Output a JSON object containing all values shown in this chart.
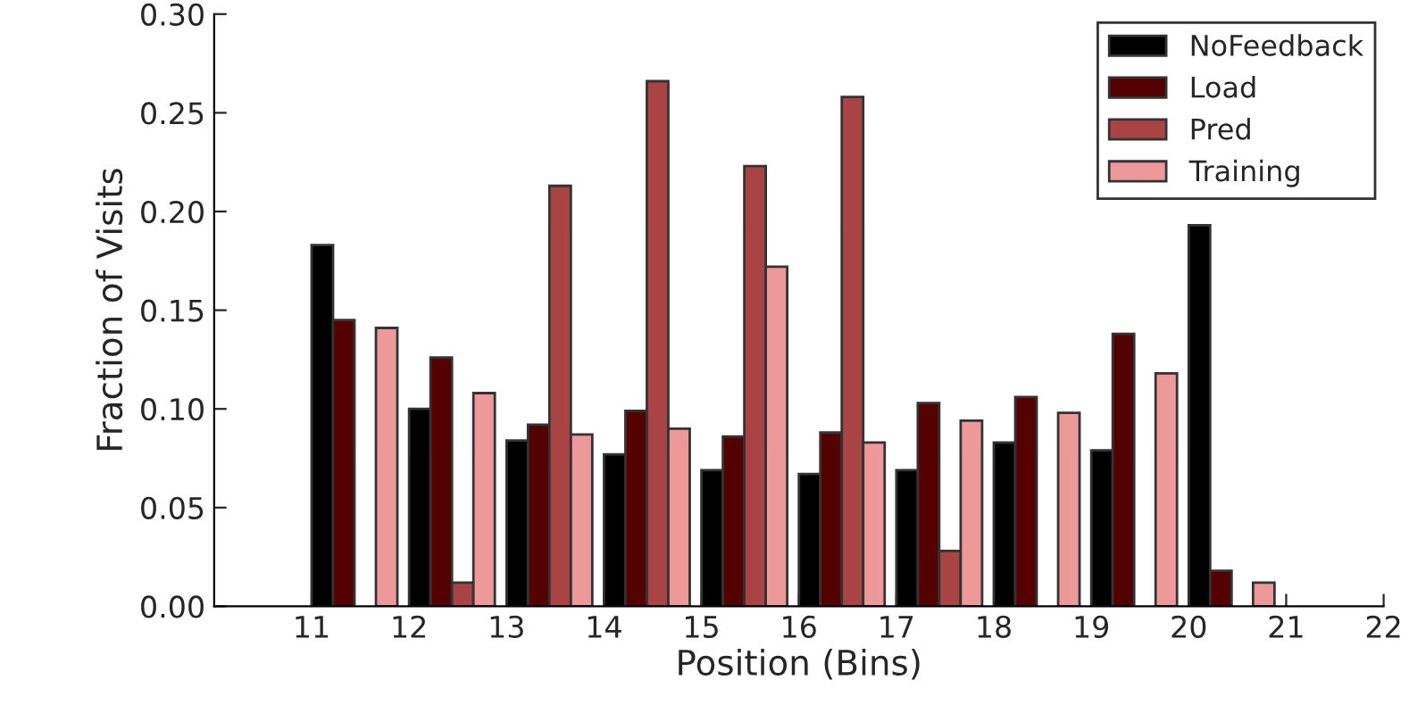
{
  "chart_data": {
    "type": "bar",
    "xlabel": "Position (Bins)",
    "ylabel": "Fraction of Visits",
    "series": [
      {
        "name": "NoFeedback",
        "color": "#000000",
        "x": [
          11.11,
          12.11,
          13.11,
          14.11,
          15.11,
          16.11,
          17.11,
          18.11,
          19.11,
          20.11
        ],
        "values": [
          0.183,
          0.1,
          0.084,
          0.077,
          0.069,
          0.067,
          0.069,
          0.083,
          0.079,
          0.193
        ]
      },
      {
        "name": "Load",
        "color": "#550000",
        "x": [
          11.33,
          12.33,
          13.33,
          14.33,
          15.33,
          16.33,
          17.33,
          18.33,
          19.33,
          20.33
        ],
        "values": [
          0.145,
          0.126,
          0.092,
          0.099,
          0.086,
          0.088,
          0.103,
          0.106,
          0.138,
          0.018
        ]
      },
      {
        "name": "Pred",
        "color": "#aa4444",
        "x": [
          12.55,
          13.55,
          14.55,
          15.55,
          16.55,
          17.55
        ],
        "values": [
          0.012,
          0.213,
          0.266,
          0.223,
          0.258,
          0.028
        ]
      },
      {
        "name": "Training",
        "color": "#ee9999",
        "x": [
          11.77,
          12.77,
          13.77,
          14.77,
          15.77,
          16.77,
          17.77,
          18.77,
          19.77,
          20.77
        ],
        "values": [
          0.141,
          0.108,
          0.087,
          0.09,
          0.172,
          0.083,
          0.094,
          0.098,
          0.118,
          0.012
        ]
      }
    ],
    "xlim": [
      10,
      22
    ],
    "xticks": [
      11,
      12,
      13,
      14,
      15,
      16,
      17,
      18,
      19,
      20,
      21,
      22
    ],
    "ylim": [
      0,
      0.3
    ],
    "yticks": [
      {
        "value": 0,
        "label": "0.00"
      },
      {
        "value": 0.05,
        "label": "0.05"
      },
      {
        "value": 0.1,
        "label": "0.10"
      },
      {
        "value": 0.15,
        "label": "0.15"
      },
      {
        "value": 0.2,
        "label": "0.20"
      },
      {
        "value": 0.25,
        "label": "0.25"
      },
      {
        "value": 0.3,
        "label": "0.30"
      }
    ],
    "legend": "top right"
  }
}
